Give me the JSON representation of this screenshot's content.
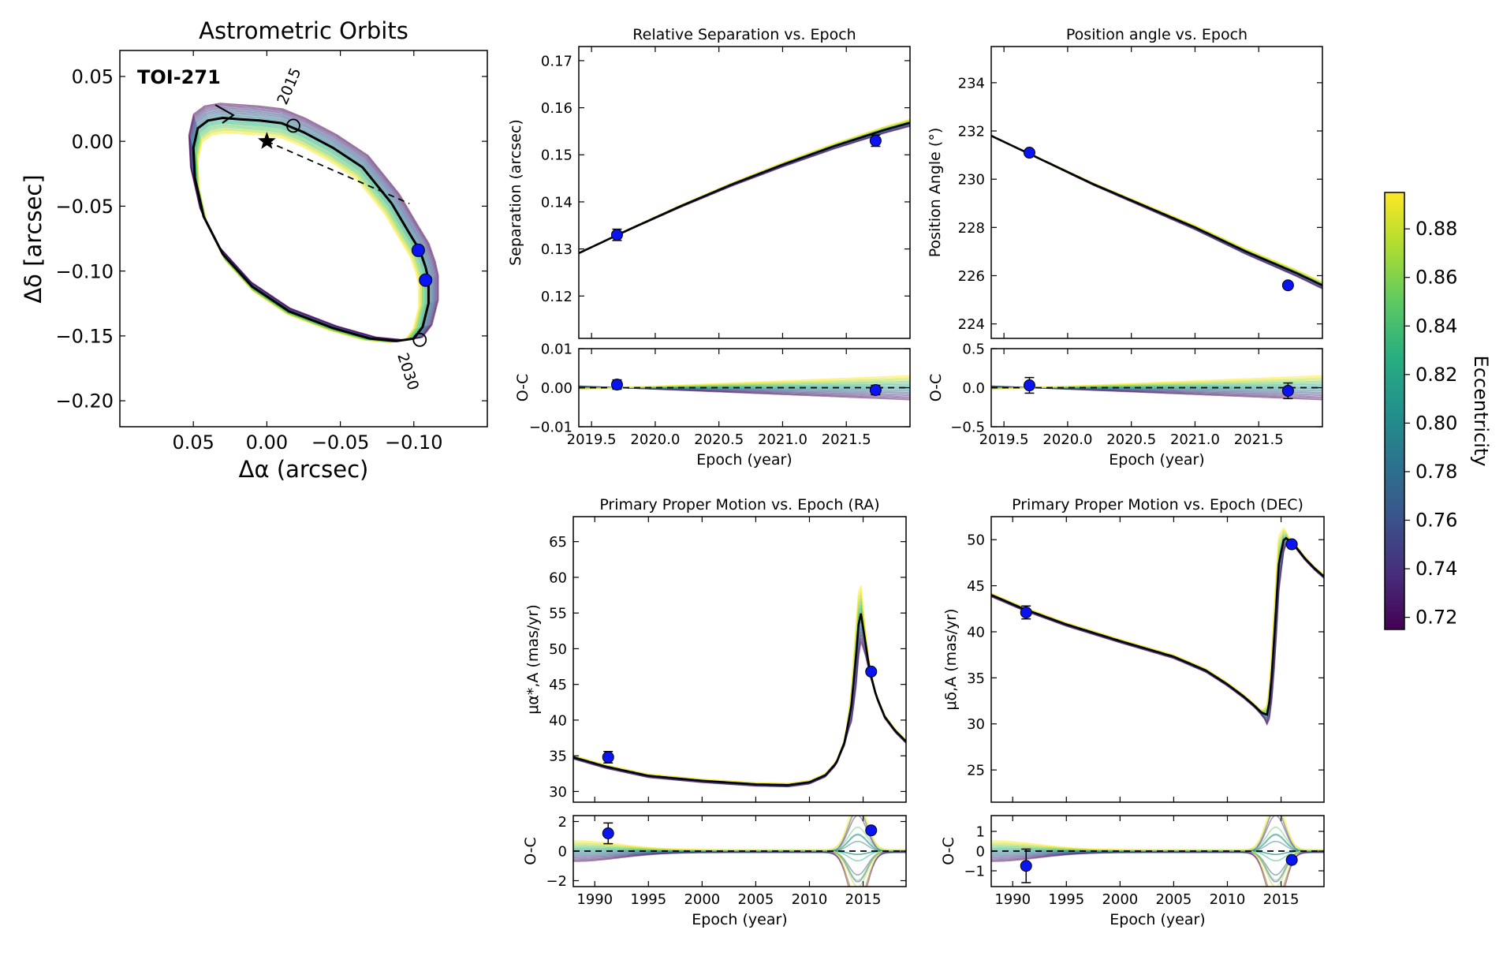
{
  "chart_data": [
    {
      "id": "orbit",
      "type": "scatter",
      "title": "Astrometric Orbits",
      "xlabel": "Δα (arcsec)",
      "ylabel": "Δδ [arcsec]",
      "xlim": [
        0.1,
        -0.15
      ],
      "ylim": [
        -0.22,
        0.07
      ],
      "xticks": [
        0.05,
        0.0,
        -0.05,
        -0.1
      ],
      "xtick_labels": [
        "0.05",
        "0.00",
        "−0.05",
        "−0.10"
      ],
      "yticks": [
        0.05,
        0.0,
        -0.05,
        -0.1,
        -0.15,
        -0.2
      ],
      "ytick_labels": [
        "0.05",
        "0.00",
        "−0.05",
        "−0.10",
        "−0.15",
        "−0.20"
      ],
      "annotations": {
        "name": "TOI-271",
        "epoch_start": "2015",
        "epoch_end": "2030"
      },
      "star": [
        0.0,
        0.0
      ],
      "best_fit": [
        [
          -0.085,
          -0.048
        ],
        [
          -0.097,
          -0.071
        ],
        [
          -0.104,
          -0.084
        ],
        [
          -0.108,
          -0.097
        ],
        [
          -0.11,
          -0.107
        ],
        [
          -0.11,
          -0.125
        ],
        [
          -0.106,
          -0.143
        ],
        [
          -0.1,
          -0.152
        ],
        [
          -0.088,
          -0.154
        ],
        [
          -0.07,
          -0.152
        ],
        [
          -0.045,
          -0.144
        ],
        [
          -0.015,
          -0.131
        ],
        [
          0.01,
          -0.112
        ],
        [
          0.03,
          -0.087
        ],
        [
          0.043,
          -0.058
        ],
        [
          0.049,
          -0.028
        ],
        [
          0.05,
          -0.005
        ],
        [
          0.047,
          0.01
        ],
        [
          0.04,
          0.016
        ],
        [
          0.03,
          0.018
        ],
        [
          0.018,
          0.017
        ],
        [
          0.005,
          0.016
        ],
        [
          -0.01,
          0.014
        ],
        [
          -0.025,
          0.007
        ],
        [
          -0.045,
          -0.005
        ],
        [
          -0.065,
          -0.02
        ],
        [
          -0.085,
          -0.048
        ]
      ],
      "data_points": [
        [
          -0.103,
          -0.084
        ],
        [
          -0.108,
          -0.107
        ]
      ],
      "epoch_markers": [
        [
          -0.018,
          0.012
        ],
        [
          -0.104,
          -0.153
        ]
      ],
      "dashed_line": [
        [
          0.0,
          0.0
        ],
        [
          -0.097,
          -0.048
        ]
      ]
    },
    {
      "id": "sep",
      "type": "line",
      "title": "Relative Separation vs. Epoch",
      "xlabel": "Epoch (year)",
      "ylabel": "Separation (arcsec)",
      "xlim": [
        2019.4,
        2022.0
      ],
      "ylim": [
        0.111,
        0.173
      ],
      "yticks": [
        0.12,
        0.13,
        0.14,
        0.15,
        0.16,
        0.17
      ],
      "ytick_labels": [
        "0.12",
        "0.13",
        "0.14",
        "0.15",
        "0.16",
        "0.17"
      ],
      "model": {
        "x": [
          2019.4,
          2019.8,
          2020.2,
          2020.6,
          2021.0,
          2021.4,
          2021.8,
          2022.0
        ],
        "y": [
          0.1291,
          0.1342,
          0.1391,
          0.1437,
          0.1479,
          0.1518,
          0.1553,
          0.1568
        ]
      },
      "points": [
        {
          "x": 2019.7,
          "y": 0.133,
          "err": 0.0012
        },
        {
          "x": 2021.73,
          "y": 0.153,
          "err": 0.0012
        }
      ],
      "residuals": {
        "ylabel": "O-C",
        "ylim": [
          -0.01,
          0.01
        ],
        "yticks": [
          -0.01,
          0.0,
          0.01
        ],
        "ytick_labels": [
          "−0.01",
          "0.00",
          "0.01"
        ],
        "xticks": [
          2019.5,
          2020.0,
          2020.5,
          2021.0,
          2021.5
        ],
        "xtick_labels": [
          "2019.5",
          "2020.0",
          "2020.5",
          "2021.0",
          "2021.5"
        ],
        "points": [
          {
            "x": 2019.7,
            "y": 0.0008,
            "err": 0.0012
          },
          {
            "x": 2021.73,
            "y": -0.0006,
            "err": 0.0012
          }
        ]
      }
    },
    {
      "id": "pa",
      "type": "line",
      "title": "Position angle vs. Epoch",
      "xlabel": "Epoch (year)",
      "ylabel": "Position Angle (°)",
      "xlim": [
        2019.4,
        2022.0
      ],
      "ylim": [
        223.4,
        235.5
      ],
      "yticks": [
        224,
        226,
        228,
        230,
        232,
        234
      ],
      "ytick_labels": [
        "224",
        "226",
        "228",
        "230",
        "232",
        "234"
      ],
      "model": {
        "x": [
          2019.4,
          2019.8,
          2020.2,
          2020.6,
          2021.0,
          2021.4,
          2021.8,
          2022.0
        ],
        "y": [
          231.8,
          230.8,
          229.8,
          228.9,
          228.0,
          227.0,
          226.1,
          225.6
        ]
      },
      "points": [
        {
          "x": 2019.7,
          "y": 231.1,
          "err": 0.1
        },
        {
          "x": 2021.73,
          "y": 225.6,
          "err": 0.1
        }
      ],
      "residuals": {
        "ylabel": "O-C",
        "ylim": [
          -0.5,
          0.5
        ],
        "yticks": [
          -0.5,
          0.0,
          0.5
        ],
        "ytick_labels": [
          "−0.5",
          "0.0",
          "0.5"
        ],
        "xticks": [
          2019.5,
          2020.0,
          2020.5,
          2021.0,
          2021.5
        ],
        "xtick_labels": [
          "2019.5",
          "2020.0",
          "2020.5",
          "2021.0",
          "2021.5"
        ],
        "points": [
          {
            "x": 2019.7,
            "y": 0.03,
            "err": 0.1
          },
          {
            "x": 2021.73,
            "y": -0.04,
            "err": 0.1
          }
        ]
      }
    },
    {
      "id": "pmra",
      "type": "line",
      "title": "Primary Proper Motion vs. Epoch (RA)",
      "xlabel": "Epoch (year)",
      "ylabel": "μα*,A (mas/yr)",
      "xlim": [
        1988,
        2019
      ],
      "ylim": [
        28.5,
        68.5
      ],
      "yticks": [
        30,
        35,
        40,
        45,
        50,
        55,
        60,
        65
      ],
      "ytick_labels": [
        "30",
        "35",
        "40",
        "45",
        "50",
        "55",
        "60",
        "65"
      ],
      "model": {
        "x": [
          1988,
          1991,
          1995,
          2000,
          2005,
          2008,
          2010,
          2011.5,
          2012.5,
          2013.3,
          2013.9,
          2014.4,
          2014.7,
          2015.1,
          2015.6,
          2016.2,
          2017,
          2018,
          2019
        ],
        "y": [
          34.8,
          33.5,
          32.2,
          31.5,
          31.0,
          30.9,
          31.3,
          32.3,
          34.0,
          37.0,
          42.0,
          50.0,
          55.8,
          52.0,
          47.0,
          43.5,
          40.5,
          38.5,
          37.0
        ]
      },
      "points": [
        {
          "x": 1991.25,
          "y": 34.8,
          "err": 0.8
        },
        {
          "x": 2015.75,
          "y": 46.8,
          "err": 0.1
        }
      ],
      "residuals": {
        "ylabel": "O-C",
        "ylim": [
          -2.4,
          2.4
        ],
        "yticks": [
          -2,
          0,
          2
        ],
        "ytick_labels": [
          "−2",
          "0",
          "2"
        ],
        "xticks": [
          1990,
          1995,
          2000,
          2005,
          2010,
          2015
        ],
        "xtick_labels": [
          "1990",
          "1995",
          "2000",
          "2005",
          "2010",
          "2015"
        ],
        "points": [
          {
            "x": 1991.25,
            "y": 1.2,
            "err": 0.7
          },
          {
            "x": 2015.75,
            "y": 1.4,
            "err": 0.15
          }
        ]
      }
    },
    {
      "id": "pmdec",
      "type": "line",
      "title": "Primary Proper Motion vs. Epoch (DEC)",
      "xlabel": "Epoch (year)",
      "ylabel": "μδ,A (mas/yr)",
      "xlim": [
        1988,
        2019
      ],
      "ylim": [
        21.5,
        52.5
      ],
      "yticks": [
        25,
        30,
        35,
        40,
        45,
        50
      ],
      "ytick_labels": [
        "25",
        "30",
        "35",
        "40",
        "45",
        "50"
      ],
      "model": {
        "x": [
          1988,
          1991,
          1995,
          2000,
          2005,
          2008,
          2010,
          2011.5,
          2012.5,
          2013.2,
          2013.7,
          2014.0,
          2014.4,
          2014.8,
          2015.3,
          2016.2,
          2017.2,
          2018.2,
          2019
        ],
        "y": [
          44.0,
          42.5,
          40.8,
          39.0,
          37.3,
          35.8,
          34.3,
          33.0,
          32.0,
          31.2,
          31.0,
          33.0,
          40.0,
          47.5,
          50.3,
          49.5,
          48.0,
          46.8,
          46.0
        ]
      },
      "points": [
        {
          "x": 1991.25,
          "y": 42.1,
          "err": 0.7
        },
        {
          "x": 2016.0,
          "y": 49.5,
          "err": 0.15
        }
      ],
      "residuals": {
        "ylabel": "O-C",
        "ylim": [
          -1.8,
          1.8
        ],
        "yticks": [
          -1,
          0,
          1
        ],
        "ytick_labels": [
          "−1",
          "0",
          "1"
        ],
        "xticks": [
          1990,
          1995,
          2000,
          2005,
          2010,
          2015
        ],
        "xtick_labels": [
          "1990",
          "1995",
          "2000",
          "2005",
          "2010",
          "2015"
        ],
        "points": [
          {
            "x": 1991.25,
            "y": -0.75,
            "err": 0.85
          },
          {
            "x": 2016.0,
            "y": -0.45,
            "err": 0.12
          }
        ]
      }
    }
  ],
  "colorbar": {
    "label": "Eccentricity",
    "min": 0.715,
    "max": 0.895,
    "ticks": [
      0.72,
      0.74,
      0.76,
      0.78,
      0.8,
      0.82,
      0.84,
      0.86,
      0.88
    ],
    "tick_labels": [
      "0.72",
      "0.74",
      "0.76",
      "0.78",
      "0.80",
      "0.82",
      "0.84",
      "0.86",
      "0.88"
    ],
    "colormap": [
      "#440154",
      "#472d7b",
      "#3b528b",
      "#2c728e",
      "#21918c",
      "#28ae80",
      "#5ec962",
      "#addc30",
      "#fde725"
    ]
  },
  "colors": {
    "point": "#0a14f0",
    "best_fit": "#000000"
  }
}
